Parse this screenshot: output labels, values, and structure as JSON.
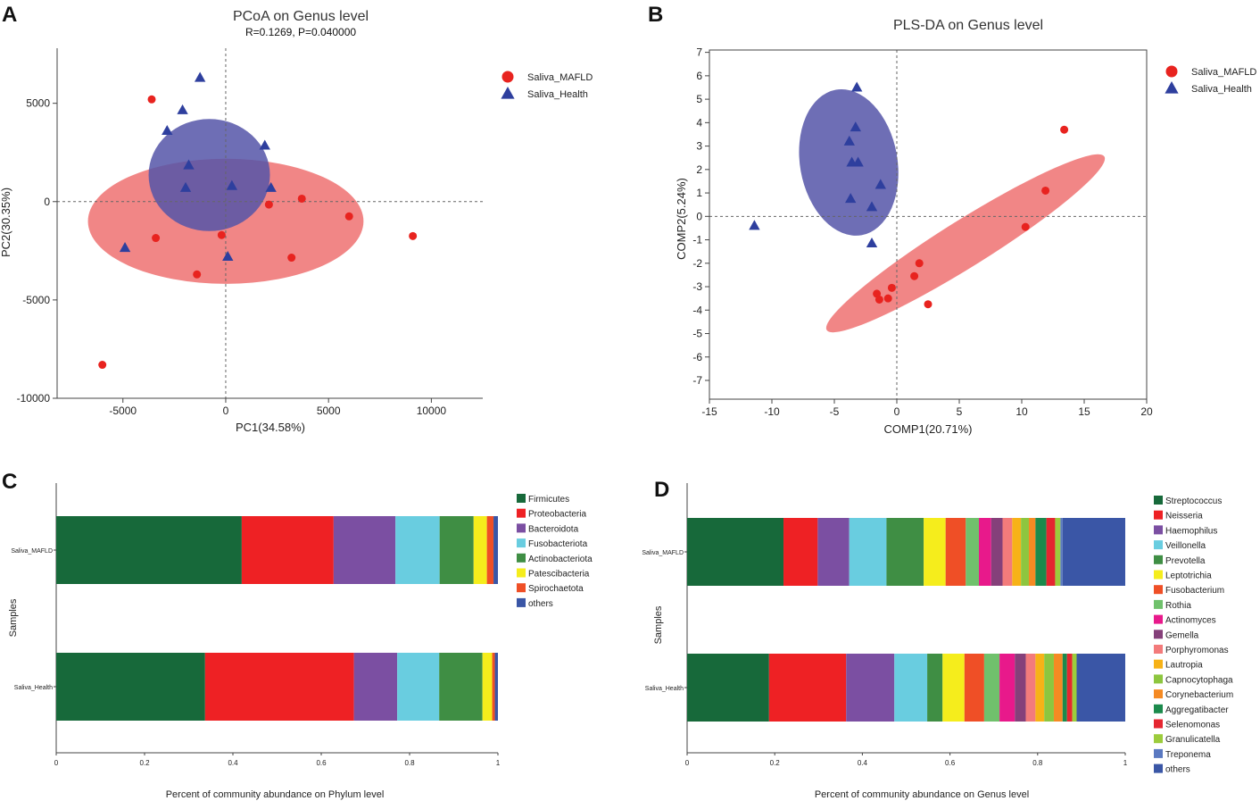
{
  "chart_data": [
    {
      "panel": "A",
      "type": "scatter",
      "title": "PCoA on Genus level",
      "subtitle": "R=0.1269, P=0.040000",
      "xlabel": "PC1(34.58%)",
      "ylabel": "PC2(30.35%)",
      "xlim": [
        -8200,
        12500
      ],
      "ylim": [
        -10000,
        7800
      ],
      "xticks": [
        -5000,
        0,
        5000,
        10000
      ],
      "xtick_labels": [
        "-5000",
        "0",
        "5000",
        "10000"
      ],
      "yticks": [
        5000,
        0,
        -5000,
        -10000
      ],
      "ytick_labels": [
        "5000",
        "0",
        "-5000",
        "-10000"
      ],
      "legend": "top-right",
      "series": [
        {
          "name": "Saliva_MAFLD",
          "color": "#e8231f",
          "marker": "circle",
          "points": [
            [
              -3600,
              5200
            ],
            [
              2100,
              -150
            ],
            [
              3700,
              150
            ],
            [
              -3400,
              -1850
            ],
            [
              -200,
              -1700
            ],
            [
              6000,
              -750
            ],
            [
              9100,
              -1750
            ],
            [
              -1400,
              -3700
            ],
            [
              3200,
              -2850
            ],
            [
              -6000,
              -8300
            ]
          ],
          "ellipse": {
            "cx": 0,
            "cy": -1000,
            "rx": 6700,
            "ry": 3180,
            "rotation_deg": 0,
            "color": "#f08080"
          }
        },
        {
          "name": "Saliva_Health",
          "color": "#2e3f9e",
          "marker": "triangle",
          "points": [
            [
              -1250,
              6300
            ],
            [
              -2100,
              4650
            ],
            [
              -2850,
              3600
            ],
            [
              1900,
              2850
            ],
            [
              -1800,
              1850
            ],
            [
              300,
              800
            ],
            [
              2200,
              700
            ],
            [
              -1950,
              700
            ],
            [
              -4900,
              -2350
            ],
            [
              100,
              -2800
            ]
          ],
          "ellipse": {
            "cx": -800,
            "cy": 1350,
            "rx": 2950,
            "ry": 2850,
            "rotation_deg": 0,
            "color": "#5555a8"
          }
        }
      ]
    },
    {
      "panel": "B",
      "type": "scatter",
      "title": "PLS-DA on Genus level",
      "xlabel": "COMP1(20.71%)",
      "ylabel": "COMP2(5.24%)",
      "xlim": [
        -15,
        20
      ],
      "ylim": [
        -7.8,
        7.1
      ],
      "xticks": [
        -15,
        -10,
        -5,
        0,
        5,
        10,
        15,
        20
      ],
      "xtick_labels": [
        "-15",
        "-10",
        "-5",
        "0",
        "5",
        "10",
        "15",
        "20"
      ],
      "yticks": [
        7,
        6,
        5,
        4,
        3,
        2,
        1,
        0,
        -1,
        -2,
        -3,
        -4,
        -5,
        -6,
        -7
      ],
      "ytick_labels": [
        "7",
        "6",
        "5",
        "4",
        "3",
        "2",
        "1",
        "0",
        "-1",
        "-2",
        "-3",
        "-4",
        "-5",
        "-6",
        "-7"
      ],
      "legend": "top-right",
      "series": [
        {
          "name": "Saliva_MAFLD",
          "color": "#e8231f",
          "marker": "circle",
          "points": [
            [
              13.4,
              3.7
            ],
            [
              11.9,
              1.1
            ],
            [
              10.3,
              -0.45
            ],
            [
              1.8,
              -2.0
            ],
            [
              1.4,
              -2.55
            ],
            [
              -0.4,
              -3.05
            ],
            [
              -1.6,
              -3.3
            ],
            [
              -1.4,
              -3.55
            ],
            [
              -0.7,
              -3.5
            ],
            [
              2.5,
              -3.75
            ]
          ],
          "ellipse": {
            "cx": 5.5,
            "cy": -1.15,
            "rx": 13.1,
            "ry": 1.0,
            "rotation_deg": -32,
            "color": "#f08080"
          }
        },
        {
          "name": "Saliva_Health",
          "color": "#2e3f9e",
          "marker": "triangle",
          "points": [
            [
              -3.2,
              5.5
            ],
            [
              -3.3,
              3.8
            ],
            [
              -3.8,
              3.2
            ],
            [
              -3.6,
              2.3
            ],
            [
              -3.1,
              2.3
            ],
            [
              -1.3,
              1.35
            ],
            [
              -3.7,
              0.75
            ],
            [
              -2.0,
              0.4
            ],
            [
              -2.0,
              -1.15
            ],
            [
              -11.4,
              -0.4
            ]
          ],
          "ellipse": {
            "cx": -3.85,
            "cy": 2.3,
            "rx": 3.9,
            "ry": 3.15,
            "rotation_deg": -10,
            "color": "#5555a8"
          }
        }
      ]
    },
    {
      "panel": "C",
      "type": "bar",
      "orientation": "horizontal-stacked",
      "xlabel": "Percent of community abundance on Phylum level",
      "ylabel": "Samples",
      "xlim": [
        0,
        1
      ],
      "xticks": [
        0,
        0.2,
        0.4,
        0.6,
        0.8,
        1
      ],
      "xtick_labels": [
        "0",
        "0.2",
        "0.4",
        "0.6",
        "0.8",
        "1"
      ],
      "categories": [
        "Saliva_MAFLD",
        "Saliva_Health"
      ],
      "legend": "right",
      "series": [
        {
          "name": "Firmicutes",
          "color": "#17693a",
          "values": [
            0.42,
            0.337
          ]
        },
        {
          "name": "Proteobacteria",
          "color": "#ee2124",
          "values": [
            0.208,
            0.337
          ]
        },
        {
          "name": "Bacteroidota",
          "color": "#7b4fa2",
          "values": [
            0.14,
            0.098
          ]
        },
        {
          "name": "Fusobacteriota",
          "color": "#69cde0",
          "values": [
            0.1,
            0.095
          ]
        },
        {
          "name": "Actinobacteriota",
          "color": "#3f8e44",
          "values": [
            0.077,
            0.098
          ]
        },
        {
          "name": "Patescibacteria",
          "color": "#f5ed1c",
          "values": [
            0.03,
            0.022
          ]
        },
        {
          "name": "Spirochaetota",
          "color": "#ef4f26",
          "values": [
            0.015,
            0.006
          ]
        },
        {
          "name": "others",
          "color": "#3a56a6",
          "values": [
            0.01,
            0.007
          ]
        }
      ]
    },
    {
      "panel": "D",
      "type": "bar",
      "orientation": "horizontal-stacked",
      "xlabel": "Percent of community abundance on Genus level",
      "ylabel": "Samples",
      "xlim": [
        0,
        1
      ],
      "xticks": [
        0,
        0.2,
        0.4,
        0.6,
        0.8,
        1
      ],
      "xtick_labels": [
        "0",
        "0.2",
        "0.4",
        "0.6",
        "0.8",
        "1"
      ],
      "categories": [
        "Saliva_MAFLD",
        "Saliva_Health"
      ],
      "legend": "right",
      "series": [
        {
          "name": "Streptococcus",
          "color": "#17693a",
          "values": [
            0.22,
            0.187
          ]
        },
        {
          "name": "Neisseria",
          "color": "#ee2124",
          "values": [
            0.078,
            0.176
          ]
        },
        {
          "name": "Haemophilus",
          "color": "#7b4fa2",
          "values": [
            0.072,
            0.11
          ]
        },
        {
          "name": "Veillonella",
          "color": "#69cde0",
          "values": [
            0.085,
            0.075
          ]
        },
        {
          "name": "Prevotella",
          "color": "#3f8e44",
          "values": [
            0.085,
            0.035
          ]
        },
        {
          "name": "Leptotrichia",
          "color": "#f5ed1c",
          "values": [
            0.05,
            0.05
          ]
        },
        {
          "name": "Fusobacterium",
          "color": "#ef4f26",
          "values": [
            0.046,
            0.045
          ]
        },
        {
          "name": "Rothia",
          "color": "#70c16c",
          "values": [
            0.03,
            0.035
          ]
        },
        {
          "name": "Actinomyces",
          "color": "#e8198b",
          "values": [
            0.028,
            0.035
          ]
        },
        {
          "name": "Gemella",
          "color": "#85407a",
          "values": [
            0.026,
            0.025
          ]
        },
        {
          "name": "Porphyromonas",
          "color": "#f37b7b",
          "values": [
            0.022,
            0.022
          ]
        },
        {
          "name": "Lautropia",
          "color": "#f7b217",
          "values": [
            0.02,
            0.02
          ]
        },
        {
          "name": "Capnocytophaga",
          "color": "#8dc63f",
          "values": [
            0.018,
            0.022
          ]
        },
        {
          "name": "Corynebacterium",
          "color": "#f58a23",
          "values": [
            0.015,
            0.02
          ]
        },
        {
          "name": "Aggregatibacter",
          "color": "#1b8a4c",
          "values": [
            0.025,
            0.01
          ]
        },
        {
          "name": "Selenomonas",
          "color": "#e52630",
          "values": [
            0.02,
            0.012
          ]
        },
        {
          "name": "Granulicatella",
          "color": "#9ccc3c",
          "values": [
            0.012,
            0.01
          ]
        },
        {
          "name": "Treponema",
          "color": "#5a79c1",
          "values": [
            0.005,
            0.0
          ]
        },
        {
          "name": "others",
          "color": "#3a56a6",
          "values": [
            0.143,
            0.111
          ]
        }
      ]
    }
  ]
}
